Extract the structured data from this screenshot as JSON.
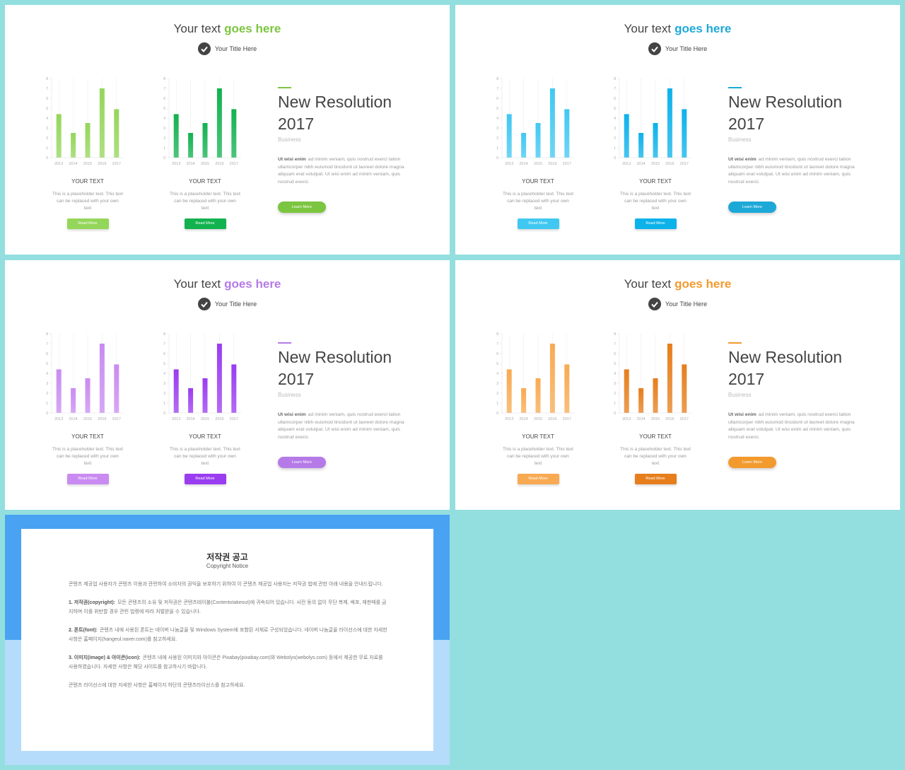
{
  "chart_data": [
    {
      "type": "bar",
      "categories": [
        "2013",
        "2014",
        "2015",
        "2016",
        "2017"
      ],
      "values": [
        4.4,
        2.5,
        3.5,
        7,
        4.9
      ],
      "color": "#94d65a",
      "ylim": [
        0,
        8
      ],
      "yticks": [
        0,
        1,
        2,
        3,
        4,
        5,
        6,
        7,
        8
      ],
      "grid": true
    },
    {
      "type": "bar",
      "categories": [
        "2013",
        "2014",
        "2015",
        "2016",
        "2017"
      ],
      "values": [
        4.4,
        2.5,
        3.5,
        7,
        4.9
      ],
      "color": "#12b24f",
      "ylim": [
        0,
        8
      ],
      "yticks": [
        0,
        1,
        2,
        3,
        4,
        5,
        6,
        7,
        8
      ],
      "grid": true
    },
    {
      "type": "bar",
      "categories": [
        "2013",
        "2014",
        "2015",
        "2016",
        "2017"
      ],
      "values": [
        4.4,
        2.5,
        3.5,
        7,
        4.9
      ],
      "color": "#40c8f2",
      "ylim": [
        0,
        8
      ],
      "yticks": [
        0,
        1,
        2,
        3,
        4,
        5,
        6,
        7,
        8
      ],
      "grid": true
    },
    {
      "type": "bar",
      "categories": [
        "2013",
        "2014",
        "2015",
        "2016",
        "2017"
      ],
      "values": [
        4.4,
        2.5,
        3.5,
        7,
        4.9
      ],
      "color": "#0cb2ea",
      "ylim": [
        0,
        8
      ],
      "yticks": [
        0,
        1,
        2,
        3,
        4,
        5,
        6,
        7,
        8
      ],
      "grid": true
    },
    {
      "type": "bar",
      "categories": [
        "2013",
        "2014",
        "2015",
        "2016",
        "2017"
      ],
      "values": [
        4.4,
        2.5,
        3.5,
        7,
        4.9
      ],
      "color": "#c98bf2",
      "ylim": [
        0,
        8
      ],
      "yticks": [
        0,
        1,
        2,
        3,
        4,
        5,
        6,
        7,
        8
      ],
      "grid": true
    },
    {
      "type": "bar",
      "categories": [
        "2013",
        "2014",
        "2015",
        "2016",
        "2017"
      ],
      "values": [
        4.4,
        2.5,
        3.5,
        7,
        4.9
      ],
      "color": "#9a3cf0",
      "ylim": [
        0,
        8
      ],
      "yticks": [
        0,
        1,
        2,
        3,
        4,
        5,
        6,
        7,
        8
      ],
      "grid": true
    },
    {
      "type": "bar",
      "categories": [
        "2013",
        "2014",
        "2015",
        "2016",
        "2017"
      ],
      "values": [
        4.4,
        2.5,
        3.5,
        7,
        4.9
      ],
      "color": "#f8aa52",
      "ylim": [
        0,
        8
      ],
      "yticks": [
        0,
        1,
        2,
        3,
        4,
        5,
        6,
        7,
        8
      ],
      "grid": true
    },
    {
      "type": "bar",
      "categories": [
        "2013",
        "2014",
        "2015",
        "2016",
        "2017"
      ],
      "values": [
        4.4,
        2.5,
        3.5,
        7,
        4.9
      ],
      "color": "#e67e1c",
      "ylim": [
        0,
        8
      ],
      "yticks": [
        0,
        1,
        2,
        3,
        4,
        5,
        6,
        7,
        8
      ],
      "grid": true
    }
  ],
  "slides": [
    {
      "accent": "#7cc540",
      "title_start": "Your text",
      "title_highlight": "goes here",
      "subtitle": "Your Title Here",
      "cards": [
        {
          "heading": "YOUR TEXT",
          "text": "This is a placeholder text. This text can be replaced with your own text",
          "button": "Read More"
        },
        {
          "heading": "YOUR TEXT",
          "text": "This is a placeholder text. This text can be replaced with your own text",
          "button": "Read More"
        }
      ],
      "heading": "New Resolution 2017",
      "label": "Business",
      "lead": "Ut wisi enim",
      "text": "ad minim veniam, quis nostrud exerci tation ullamcorper nibh euismod tincidunt ut laoreet dolore magna aliquam erat volutpat. Ut wisi enim ad minim veniam, quis nostrud exerci.",
      "button": "Learn More"
    },
    {
      "accent": "#1ea8d8",
      "title_start": "Your text",
      "title_highlight": "goes here",
      "subtitle": "Your Title Here",
      "cards": [
        {
          "heading": "YOUR TEXT",
          "text": "This is a placeholder text. This text can be replaced with your own text",
          "button": "Read More"
        },
        {
          "heading": "YOUR TEXT",
          "text": "This is a placeholder text. This text can be replaced with your own text",
          "button": "Read More"
        }
      ],
      "heading": "New Resolution 2017",
      "label": "Business",
      "lead": "Ut wisi enim",
      "text": "ad minim veniam, quis nostrud exerci tation ullamcorper nibh euismod tincidunt ut laoreet dolore magna aliquam erat volutpat. Ut wisi enim ad minim veniam, quis nostrud exerci.",
      "button": "Learn More"
    },
    {
      "accent": "#b57ae8",
      "title_start": "Your text",
      "title_highlight": "goes here",
      "subtitle": "Your Title Here",
      "cards": [
        {
          "heading": "YOUR TEXT",
          "text": "This is a placeholder text. This text can be replaced with your own text",
          "button": "Read More"
        },
        {
          "heading": "YOUR TEXT",
          "text": "This is a placeholder text. This text can be replaced with your own text",
          "button": "Read More"
        }
      ],
      "heading": "New Resolution 2017",
      "label": "Business",
      "lead": "Ut wisi enim",
      "text": "ad minim veniam, quis nostrud exerci tation ullamcorper nibh euismod tincidunt ut laoreet dolore magna aliquam erat volutpat. Ut wisi enim ad minim veniam, quis nostrud exerci.",
      "button": "Learn More"
    },
    {
      "accent": "#f39a2e",
      "title_start": "Your text",
      "title_highlight": "goes here",
      "subtitle": "Your Title Here",
      "cards": [
        {
          "heading": "YOUR TEXT",
          "text": "This is a placeholder text. This text can be replaced with your own text",
          "button": "Read More"
        },
        {
          "heading": "YOUR TEXT",
          "text": "This is a placeholder text. This text can be replaced with your own text",
          "button": "Read More"
        }
      ],
      "heading": "New Resolution 2017",
      "label": "Business",
      "lead": "Ut wisi enim",
      "text": "ad minim veniam, quis nostrud exerci tation ullamcorper nibh euismod tincidunt ut laoreet dolore magna aliquam erat volutpat. Ut wisi enim ad minim veniam, quis nostrud exerci.",
      "button": "Learn More"
    }
  ],
  "notice": {
    "title": "저작권 공고",
    "subtitle": "Copyright Notice",
    "paragraphs": [
      {
        "lead": "",
        "text": "콘텐츠 제공업 사용자가 콘텐츠 이용과 관련하여 소비자의 권익을 보호하기 위하여 이 콘텐츠 제공업 사용자는 저작권 법에 관한 아래 내용을 안내드립니다."
      },
      {
        "lead": "1. 저작권(copyright):",
        "text": "모든 콘텐츠의 소유 및 저작권은 콘텐츠테이블(Contentstakeout)에 귀속되어 있습니다. 사전 동의 없이 무단 복제, 배포, 재판매를 금지하며 이를 위반할 경우 관련 법령에 따라 처벌받을 수 있습니다."
      },
      {
        "lead": "2. 폰트(font):",
        "text": "콘텐츠 내에 사용된 폰트는 네이버 나눔글꼴 및 Windows System에 포함된 서체로 구성되었습니다. 네이버 나눔글꼴 라이선스에 대한 자세한 사항은 홈페이지(hangeul.naver.com)를 참고하세요."
      },
      {
        "lead": "3. 이미지(image) & 아이콘(icon):",
        "text": "콘텐츠 내에 사용된 이미지와 아이콘은 Pixabay(pixabay.com)와 Webolys(webolys.com) 등에서 제공한 무료 자료를 사용하였습니다. 자세한 사항은 해당 사이트를 참고하시기 바랍니다."
      },
      {
        "lead": "",
        "text": "콘텐츠 라이선스에 대한 자세한 사항은 홈페이지 하단의 콘텐츠라이선스를 참고하세요."
      }
    ]
  }
}
